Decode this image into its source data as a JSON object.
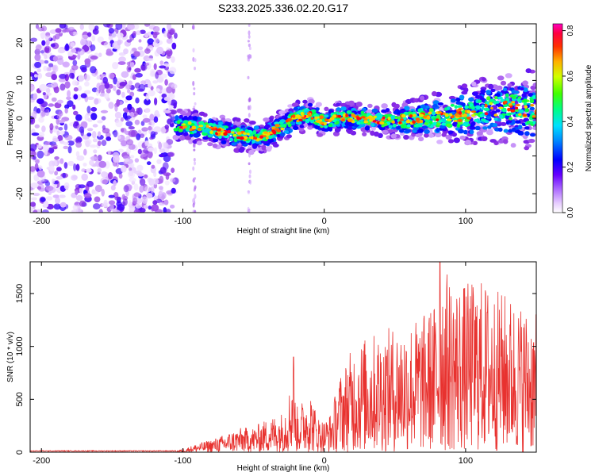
{
  "figure_title": "S233.2025.336.02.20.G17",
  "colors": {
    "snr_line": "#e8322f",
    "axis": "#000000",
    "background": "#ffffff"
  },
  "chart_data": [
    {
      "type": "heatmap",
      "name": "spectrogram",
      "xlabel": "Height of straight line (km)",
      "ylabel": "Frequency (Hz)",
      "xlim": [
        -208,
        150
      ],
      "ylim": [
        -25,
        25
      ],
      "x_ticks": [
        -200,
        -100,
        0,
        100
      ],
      "y_ticks": [
        -20,
        -10,
        0,
        10,
        20
      ],
      "colorbar": {
        "label": "Normalized spectral amplitude",
        "range": [
          0.0,
          0.83
        ],
        "ticks": [
          "0.0",
          "0.2",
          "0.4",
          "0.6",
          "0.8"
        ],
        "colormap": [
          "#ffffff",
          "#d9b3ff",
          "#8a2be2",
          "#3b00ff",
          "#0000ff",
          "#00aaff",
          "#00ffd0",
          "#00ff40",
          "#c8ff00",
          "#ffd000",
          "#ff7000",
          "#ff0000",
          "#ff00a0"
        ]
      },
      "signal_ridge": {
        "x": [
          -105,
          -90,
          -75,
          -60,
          -50,
          -40,
          -30,
          -20,
          -10,
          0,
          10,
          25,
          40,
          55,
          70,
          85,
          100,
          115,
          130,
          150
        ],
        "freq": [
          -1.5,
          -2.5,
          -3.5,
          -4.5,
          -5,
          -4.5,
          -2,
          0,
          1,
          -1,
          0,
          0,
          -0.5,
          -0.5,
          0,
          0.5,
          1,
          2,
          2.5,
          2
        ]
      },
      "noise_region_x": [
        -208,
        -105
      ]
    },
    {
      "type": "line",
      "name": "snr",
      "xlabel": "Height of straight line (km)",
      "ylabel": "SNR (10 * v/v)",
      "xlim": [
        -208,
        150
      ],
      "ylim": [
        0,
        1800
      ],
      "x_ticks": [
        -200,
        -100,
        0,
        100
      ],
      "y_ticks": [
        0,
        500,
        1000,
        1500
      ],
      "series": [
        {
          "name": "SNR",
          "x": [
            -208,
            -150,
            -105,
            -100,
            -90,
            -80,
            -70,
            -60,
            -50,
            -40,
            -30,
            -25,
            -22,
            -20,
            -15,
            -10,
            -5,
            0,
            5,
            10,
            20,
            30,
            40,
            50,
            60,
            70,
            80,
            82,
            90,
            100,
            110,
            120,
            130,
            140,
            150
          ],
          "y_envelope": [
            15,
            15,
            15,
            30,
            80,
            120,
            170,
            230,
            240,
            320,
            380,
            560,
            900,
            420,
            500,
            600,
            350,
            300,
            380,
            700,
            1000,
            1100,
            1150,
            1200,
            1250,
            1300,
            1450,
            1800,
            1650,
            1600,
            1650,
            1550,
            1500,
            1400,
            1300
          ]
        }
      ]
    }
  ]
}
